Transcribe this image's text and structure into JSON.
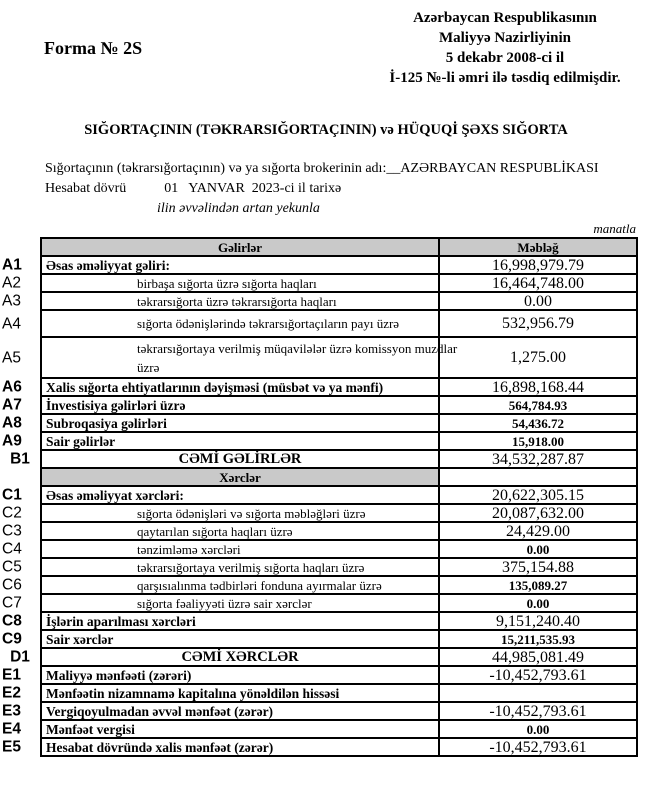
{
  "header": {
    "form_number": "Forma № 2S",
    "approval": [
      "Azərbaycan Respublikasının",
      "Maliyyə Nazirliyinin",
      "5 dekabr 2008-ci il",
      "İ-125 №-li əmri ilə təsdiq edilmişdir."
    ],
    "title": "SIĞORTAÇININ (TƏKRARSIĞORTAÇININ) və HÜQUQİ ŞƏXS SIĞORTA",
    "name_label": "Sığortaçının (təkrarsığortaçının) və ya sığorta brokerinin adı:",
    "name_value": "__AZƏRBAYCAN RESPUBLİKASI",
    "period_label": "Hesabat dövrü",
    "period_value": "01   YANVAR  2023-ci il tarixə",
    "cumulative": "ilin əvvəlindən artan yekunla",
    "unit": "manatla"
  },
  "table": {
    "income_header": "Gəlirlər",
    "amount_header": "Məbləğ",
    "expense_header": "Xərclər",
    "rows": [
      {
        "code": "A1",
        "label": "Əsas əməliyyat gəliri:",
        "value": "16,998,979.79",
        "style": "bold",
        "value_bold": false
      },
      {
        "code": "A2",
        "label": "birbaşa sığorta üzrə sığorta haqları",
        "value": "16,464,748.00",
        "style": "sub",
        "value_bold": false
      },
      {
        "code": "A3",
        "label": "təkrarsığorta üzrə təkrarsığorta haqları",
        "value": "0.00",
        "style": "sub",
        "value_bold": false
      },
      {
        "code": "A4",
        "label": "sığorta ödənişlərində təkrarsığortaçıların payı üzrə",
        "value": "532,956.79",
        "style": "sub",
        "value_bold": false,
        "tall": 1
      },
      {
        "code": "A5",
        "label": "təkrarsığortaya verilmiş müqavilələr üzrə komissyon muzdlar üzrə",
        "value": "1,275.00",
        "style": "sub",
        "value_bold": false,
        "tall": 2
      },
      {
        "code": "A6",
        "label": "Xalis sığorta ehtiyatlarının dəyişməsi (müsbət və ya mənfi)",
        "value": "16,898,168.44",
        "style": "bold",
        "value_bold": false
      },
      {
        "code": "A7",
        "label": "İnvestisiya gəlirləri üzrə",
        "value": "564,784.93",
        "style": "bold",
        "value_bold": true
      },
      {
        "code": "A8",
        "label": "Subroqasiya gəlirləri",
        "value": "54,436.72",
        "style": "bold",
        "value_bold": true
      },
      {
        "code": "A9",
        "label": "Sair gəlirlər",
        "value": "15,918.00",
        "style": "bold",
        "value_bold": true
      },
      {
        "code": "B1",
        "label": "CƏMİ  GƏLİRLƏR",
        "value": "34,532,287.87",
        "style": "total",
        "value_bold": false
      },
      {
        "code": "",
        "label": "Xərclər",
        "value": "",
        "style": "header",
        "value_bold": false
      },
      {
        "code": "C1",
        "label": "Əsas əməliyyat xərcləri:",
        "value": "20,622,305.15",
        "style": "bold",
        "value_bold": false
      },
      {
        "code": "C2",
        "label": "sığorta ödənişləri və sığorta məbləğləri üzrə",
        "value": "20,087,632.00",
        "style": "sub",
        "value_bold": false
      },
      {
        "code": "C3",
        "label": "qaytarılan sığorta haqları üzrə",
        "value": "24,429.00",
        "style": "sub",
        "value_bold": false
      },
      {
        "code": "C4",
        "label": "tənzimləmə xərcləri",
        "value": "0.00",
        "style": "sub",
        "value_bold": true
      },
      {
        "code": "C5",
        "label": "təkrarsığortaya verilmiş sığorta haqları üzrə",
        "value": "375,154.88",
        "style": "sub",
        "value_bold": false
      },
      {
        "code": "C6",
        "label": "qarşısıalınma tədbirləri fonduna ayırmalar üzrə",
        "value": "135,089.27",
        "style": "sub",
        "value_bold": true
      },
      {
        "code": "C7",
        "label": "sığorta fəaliyyəti üzrə sair xərclər",
        "value": "0.00",
        "style": "sub",
        "value_bold": true
      },
      {
        "code": "C8",
        "label": "İşlərin aparılması xərcləri",
        "value": "9,151,240.40",
        "style": "bold",
        "value_bold": false
      },
      {
        "code": "C9",
        "label": "Sair xərclər",
        "value": "15,211,535.93",
        "style": "bold",
        "value_bold": true
      },
      {
        "code": "D1",
        "label": "CƏMİ  XƏRCLƏR",
        "value": "44,985,081.49",
        "style": "total",
        "value_bold": false
      },
      {
        "code": "E1",
        "label": "Maliyyə mənfəəti (zərəri)",
        "value": "-10,452,793.61",
        "style": "bold",
        "value_bold": false
      },
      {
        "code": "E2",
        "label": "Mənfəətin nizamnamə kapitalına yönəldilən hissəsi",
        "value": "",
        "style": "bold",
        "value_bold": false
      },
      {
        "code": "E3",
        "label": "Vergiqoyulmadan əvvəl mənfəət (zərər)",
        "value": "-10,452,793.61",
        "style": "bold",
        "value_bold": false
      },
      {
        "code": "E4",
        "label": "Mənfəət vergisi",
        "value": "0.00",
        "style": "bold",
        "value_bold": true
      },
      {
        "code": "E5",
        "label": "Hesabat dövründə xalis mənfəət (zərər)",
        "value": "-10,452,793.61",
        "style": "bold",
        "value_bold": false
      }
    ]
  }
}
